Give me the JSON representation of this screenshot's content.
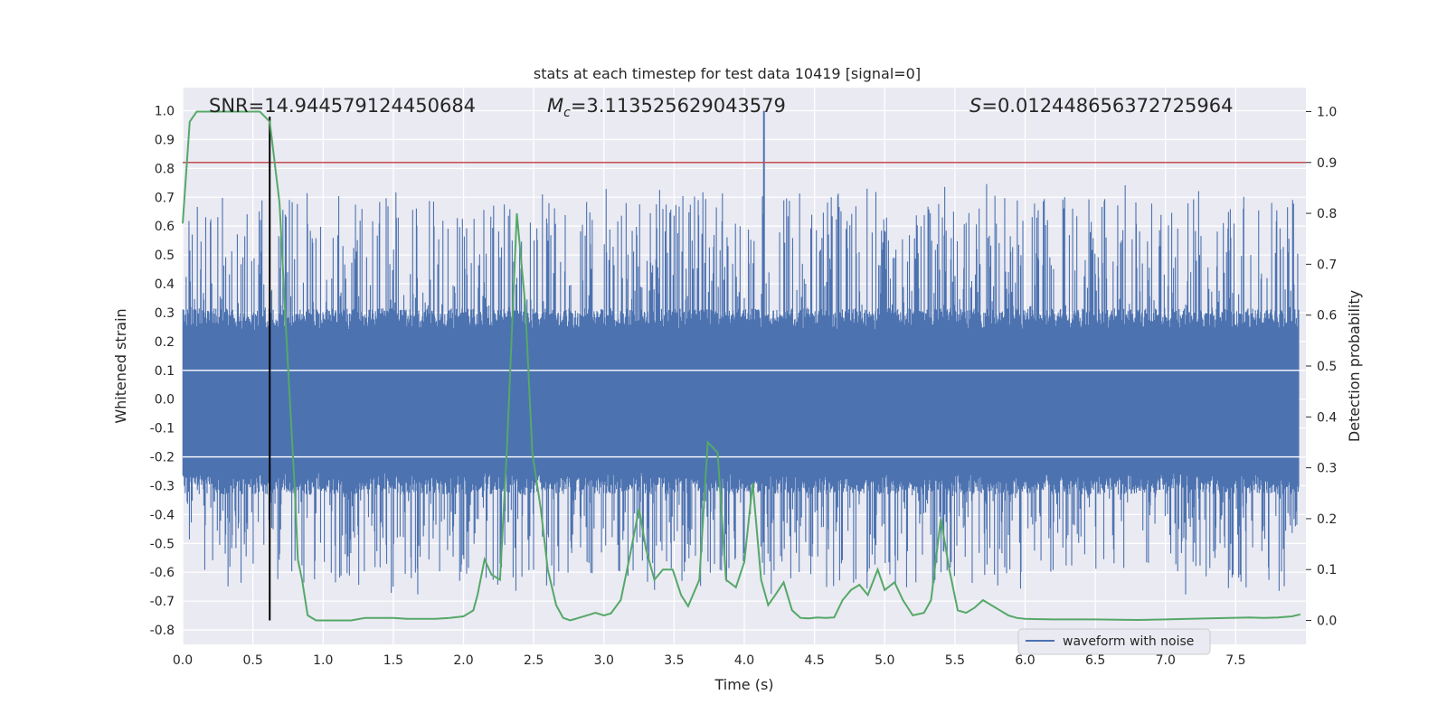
{
  "chart_data": {
    "type": "line",
    "title": "stats at each timestep for test data 10419 [signal=0]",
    "xlabel": "Time (s)",
    "ylabel_left": "Whitened strain",
    "ylabel_right": "Detection probability",
    "xlim": [
      0.0,
      8.0
    ],
    "ylim_left": [
      -0.85,
      1.08
    ],
    "ylim_right": [
      -0.047,
      1.047
    ],
    "x_ticks": [
      0.0,
      0.5,
      1.0,
      1.5,
      2.0,
      2.5,
      3.0,
      3.5,
      4.0,
      4.5,
      5.0,
      5.5,
      6.0,
      6.5,
      7.0,
      7.5
    ],
    "x_tick_labels": [
      "0.0",
      "0.5",
      "1.0",
      "1.5",
      "2.0",
      "2.5",
      "3.0",
      "3.5",
      "4.0",
      "4.5",
      "5.0",
      "5.5",
      "6.0",
      "6.5",
      "7.0",
      "7.5"
    ],
    "y_left_ticks": [
      -0.8,
      -0.7,
      -0.6,
      -0.5,
      -0.4,
      -0.3,
      -0.2,
      -0.1,
      0.0,
      0.1,
      0.2,
      0.3,
      0.4,
      0.5,
      0.6,
      0.7,
      0.8,
      0.9,
      1.0
    ],
    "y_left_tick_labels": [
      "-0.8",
      "-0.7",
      "-0.6",
      "-0.5",
      "-0.4",
      "-0.3",
      "-0.2",
      "-0.1",
      "0.0",
      "0.1",
      "0.2",
      "0.3",
      "0.4",
      "0.5",
      "0.6",
      "0.7",
      "0.8",
      "0.9",
      "1.0"
    ],
    "y_right_ticks": [
      0.0,
      0.1,
      0.2,
      0.3,
      0.4,
      0.5,
      0.6,
      0.7,
      0.8,
      0.9,
      1.0
    ],
    "y_right_tick_labels": [
      "0.0",
      "0.1",
      "0.2",
      "0.3",
      "0.4",
      "0.5",
      "0.6",
      "0.7",
      "0.8",
      "0.9",
      "1.0"
    ],
    "grid": true,
    "annotations": {
      "snr": "SNR=14.944579124450684",
      "mc_symbol": "M",
      "mc_sub": "c",
      "mc_value": "=3.113525629043579",
      "s_symbol": "S",
      "s_value": "=0.012448656372725964"
    },
    "threshold_right": 0.9,
    "marker_time": 0.62,
    "waveform": {
      "name": "waveform with noise",
      "color": "#4c72b0",
      "core_envelope": 0.3,
      "spike_max": 0.74,
      "peak_time": 4.14,
      "peak_value": 1.0
    },
    "detection_probability": {
      "color": "#55a868",
      "x": [
        0.0,
        0.05,
        0.1,
        0.15,
        0.3,
        0.4,
        0.5,
        0.55,
        0.62,
        0.69,
        0.74,
        0.8,
        0.82,
        0.85,
        0.89,
        0.95,
        1.0,
        1.1,
        1.2,
        1.3,
        1.4,
        1.5,
        1.6,
        1.7,
        1.8,
        1.9,
        2.0,
        2.07,
        2.1,
        2.15,
        2.2,
        2.26,
        2.31,
        2.38,
        2.44,
        2.49,
        2.55,
        2.6,
        2.66,
        2.71,
        2.76,
        2.82,
        2.88,
        2.94,
        3.0,
        3.05,
        3.12,
        3.18,
        3.25,
        3.3,
        3.36,
        3.42,
        3.49,
        3.55,
        3.6,
        3.68,
        3.74,
        3.81,
        3.87,
        3.94,
        4.0,
        4.06,
        4.12,
        4.17,
        4.22,
        4.28,
        4.34,
        4.4,
        4.46,
        4.52,
        4.58,
        4.64,
        4.7,
        4.76,
        4.82,
        4.88,
        4.95,
        5.0,
        5.07,
        5.13,
        5.2,
        5.28,
        5.33,
        5.4,
        5.46,
        5.52,
        5.58,
        5.64,
        5.7,
        5.76,
        5.82,
        5.88,
        5.94,
        6.0,
        6.2,
        6.5,
        6.8,
        7.0,
        7.3,
        7.6,
        7.7,
        7.8,
        7.9,
        7.96
      ],
      "y": [
        0.78,
        0.98,
        1.0,
        1.0,
        1.0,
        1.0,
        1.0,
        1.0,
        0.98,
        0.82,
        0.55,
        0.25,
        0.12,
        0.08,
        0.01,
        0.0,
        0.0,
        0.0,
        0.0,
        0.005,
        0.005,
        0.005,
        0.003,
        0.003,
        0.003,
        0.005,
        0.008,
        0.02,
        0.05,
        0.12,
        0.09,
        0.08,
        0.34,
        0.8,
        0.62,
        0.33,
        0.22,
        0.1,
        0.03,
        0.005,
        0.0,
        0.005,
        0.01,
        0.015,
        0.01,
        0.014,
        0.04,
        0.12,
        0.22,
        0.14,
        0.08,
        0.1,
        0.1,
        0.05,
        0.028,
        0.08,
        0.35,
        0.33,
        0.08,
        0.065,
        0.115,
        0.27,
        0.08,
        0.03,
        0.05,
        0.075,
        0.02,
        0.005,
        0.004,
        0.006,
        0.005,
        0.006,
        0.04,
        0.06,
        0.07,
        0.05,
        0.1,
        0.06,
        0.075,
        0.04,
        0.01,
        0.015,
        0.04,
        0.2,
        0.1,
        0.02,
        0.015,
        0.025,
        0.04,
        0.03,
        0.02,
        0.01,
        0.005,
        0.003,
        0.002,
        0.002,
        0.001,
        0.002,
        0.004,
        0.006,
        0.005,
        0.006,
        0.008,
        0.012
      ]
    }
  }
}
